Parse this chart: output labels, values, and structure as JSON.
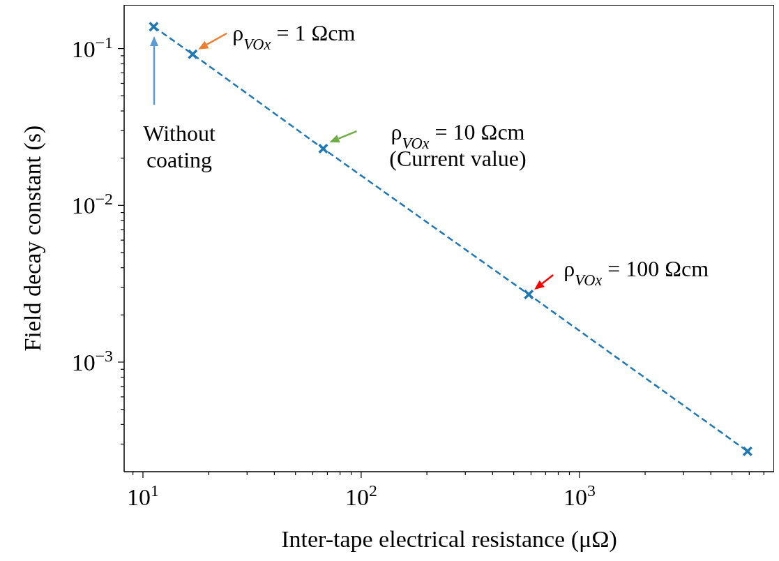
{
  "chart_data": {
    "type": "line",
    "xlabel": "Inter-tape electrical resistance (μΩ)",
    "ylabel": "Field decay constant (s)",
    "x": [
      11.2,
      16.9,
      67,
      586,
      5890
    ],
    "series": [
      {
        "color": "#1f77b4",
        "values": [
          0.138,
          0.092,
          0.023,
          0.0027,
          0.00027
        ]
      }
    ],
    "log": "xy",
    "xlim": [
      8.2,
      7800
    ],
    "ylim": [
      0.0002,
      0.19
    ],
    "xticks": [
      {
        "value": 9,
        "label": null
      },
      {
        "value": 10,
        "label": "10$^{1}$"
      },
      {
        "value": 20,
        "label": null
      },
      {
        "value": 30,
        "label": null
      },
      {
        "value": 40,
        "label": null
      },
      {
        "value": 50,
        "label": null
      },
      {
        "value": 60,
        "label": null
      },
      {
        "value": 70,
        "label": null
      },
      {
        "value": 80,
        "label": null
      },
      {
        "value": 90,
        "label": null
      },
      {
        "value": 100,
        "label": "10$^{2}$"
      },
      {
        "value": 200,
        "label": null
      },
      {
        "value": 300,
        "label": null
      },
      {
        "value": 400,
        "label": null
      },
      {
        "value": 500,
        "label": null
      },
      {
        "value": 600,
        "label": null
      },
      {
        "value": 700,
        "label": null
      },
      {
        "value": 800,
        "label": null
      },
      {
        "value": 900,
        "label": null
      },
      {
        "value": 1000,
        "label": "10$^{3}$"
      },
      {
        "value": 2000,
        "label": null
      },
      {
        "value": 3000,
        "label": null
      },
      {
        "value": 4000,
        "label": null
      },
      {
        "value": 5000,
        "label": null
      },
      {
        "value": 6000,
        "label": null
      },
      {
        "value": 7000,
        "label": null
      }
    ],
    "yticks": [
      {
        "value": 0.0003,
        "label": null
      },
      {
        "value": 0.0004,
        "label": null
      },
      {
        "value": 0.0005,
        "label": null
      },
      {
        "value": 0.0006,
        "label": null
      },
      {
        "value": 0.0007,
        "label": null
      },
      {
        "value": 0.0008,
        "label": null
      },
      {
        "value": 0.0009,
        "label": null
      },
      {
        "value": 0.001,
        "label": "10$^{−3}$"
      },
      {
        "value": 0.002,
        "label": null
      },
      {
        "value": 0.003,
        "label": null
      },
      {
        "value": 0.004,
        "label": null
      },
      {
        "value": 0.005,
        "label": null
      },
      {
        "value": 0.006,
        "label": null
      },
      {
        "value": 0.007,
        "label": null
      },
      {
        "value": 0.008,
        "label": null
      },
      {
        "value": 0.009,
        "label": null
      },
      {
        "value": 0.01,
        "label": "10$^{−2}$"
      },
      {
        "value": 0.02,
        "label": null
      },
      {
        "value": 0.03,
        "label": null
      },
      {
        "value": 0.04,
        "label": null
      },
      {
        "value": 0.05,
        "label": null
      },
      {
        "value": 0.06,
        "label": null
      },
      {
        "value": 0.07,
        "label": null
      },
      {
        "value": 0.08,
        "label": null
      },
      {
        "value": 0.09,
        "label": null
      },
      {
        "value": 0.1,
        "label": "10$^{−1}$"
      }
    ],
    "marker": "cross",
    "line_style": "dashed",
    "grid": false,
    "annotations": [
      "Without\ncoating",
      {
        "text": "ρ$_{VOx}$ =  1 Ωcm",
        "x": 16.9,
        "y": 0.092
      },
      {
        "text": "ρ$_{VOx}$ = 10 Ωcm\n(Current value)",
        "x": 67,
        "y": 0.023
      },
      {
        "text": "ρ$_{VOx}$ = 100 Ωcm",
        "x": 586,
        "y": 0.0027
      }
    ]
  }
}
